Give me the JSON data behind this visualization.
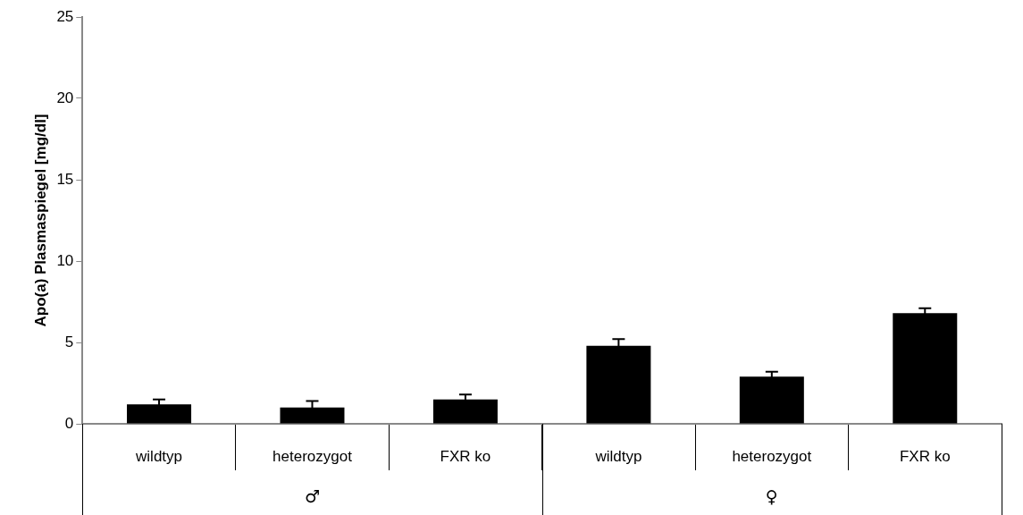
{
  "chart_data": {
    "type": "bar",
    "ylabel": "Apo(a) Plasmaspiegel [mg/dl]",
    "categories": [
      "wildtyp",
      "heterozygot",
      "FXR ko",
      "wildtyp",
      "heterozygot",
      "FXR ko"
    ],
    "values": [
      1.2,
      1.0,
      1.5,
      4.8,
      2.9,
      6.8
    ],
    "errors": [
      0.3,
      0.4,
      0.3,
      0.4,
      0.3,
      0.3
    ],
    "color": "#000000",
    "ylim": [
      0,
      25
    ],
    "yticks": [
      0,
      5,
      10,
      15,
      20,
      25
    ],
    "annotations": [
      "♂",
      "♀"
    ]
  }
}
